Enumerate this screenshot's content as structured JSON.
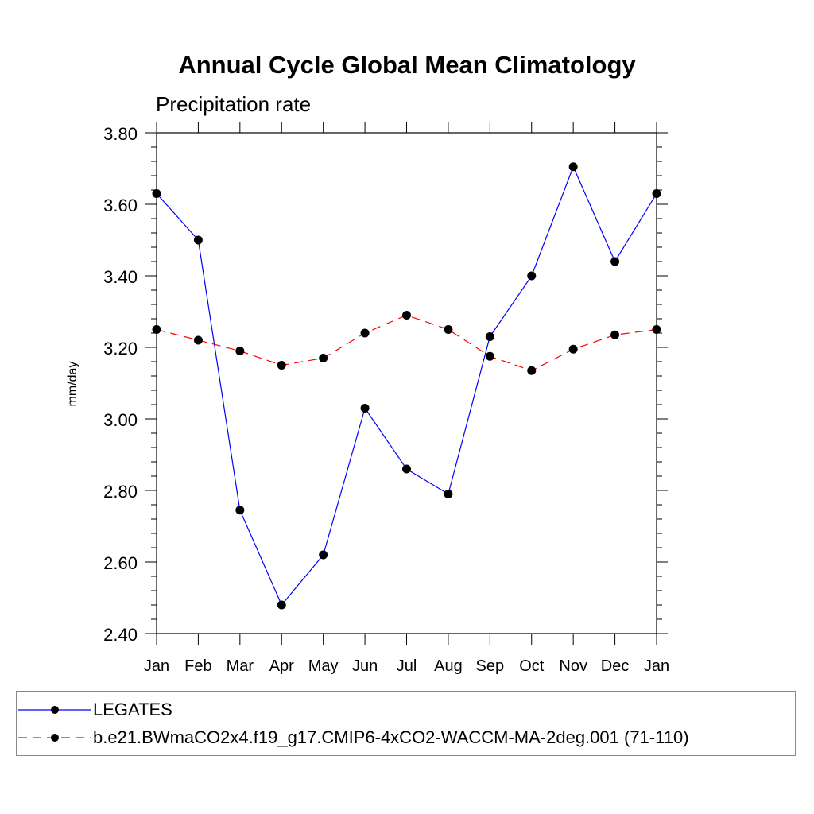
{
  "chart_data": {
    "type": "line",
    "title": "Annual Cycle Global Mean Climatology",
    "subtitle": "Precipitation rate",
    "xlabel": "",
    "ylabel": "mm/day",
    "categories": [
      "Jan",
      "Feb",
      "Mar",
      "Apr",
      "May",
      "Jun",
      "Jul",
      "Aug",
      "Sep",
      "Oct",
      "Nov",
      "Dec",
      "Jan"
    ],
    "ylim": [
      2.4,
      3.8
    ],
    "yticks": [
      "2.40",
      "2.60",
      "2.80",
      "3.00",
      "3.20",
      "3.40",
      "3.60",
      "3.80"
    ],
    "grid": false,
    "legend_position": "bottom",
    "series": [
      {
        "name": "LEGATES",
        "color": "#0000ff",
        "line_style": "solid",
        "marker": "circle",
        "values": [
          3.63,
          3.5,
          2.745,
          2.48,
          2.62,
          3.03,
          2.86,
          2.79,
          3.23,
          3.4,
          3.705,
          3.44,
          3.63
        ]
      },
      {
        "name": "b.e21.BWmaCO2x4.f19_g17.CMIP6-4xCO2-WACCM-MA-2deg.001 (71-110)",
        "color": "#ff0000",
        "line_style": "dashed",
        "marker": "circle",
        "values": [
          3.25,
          3.22,
          3.19,
          3.15,
          3.17,
          3.24,
          3.29,
          3.25,
          3.175,
          3.135,
          3.195,
          3.235,
          3.25
        ]
      }
    ]
  }
}
